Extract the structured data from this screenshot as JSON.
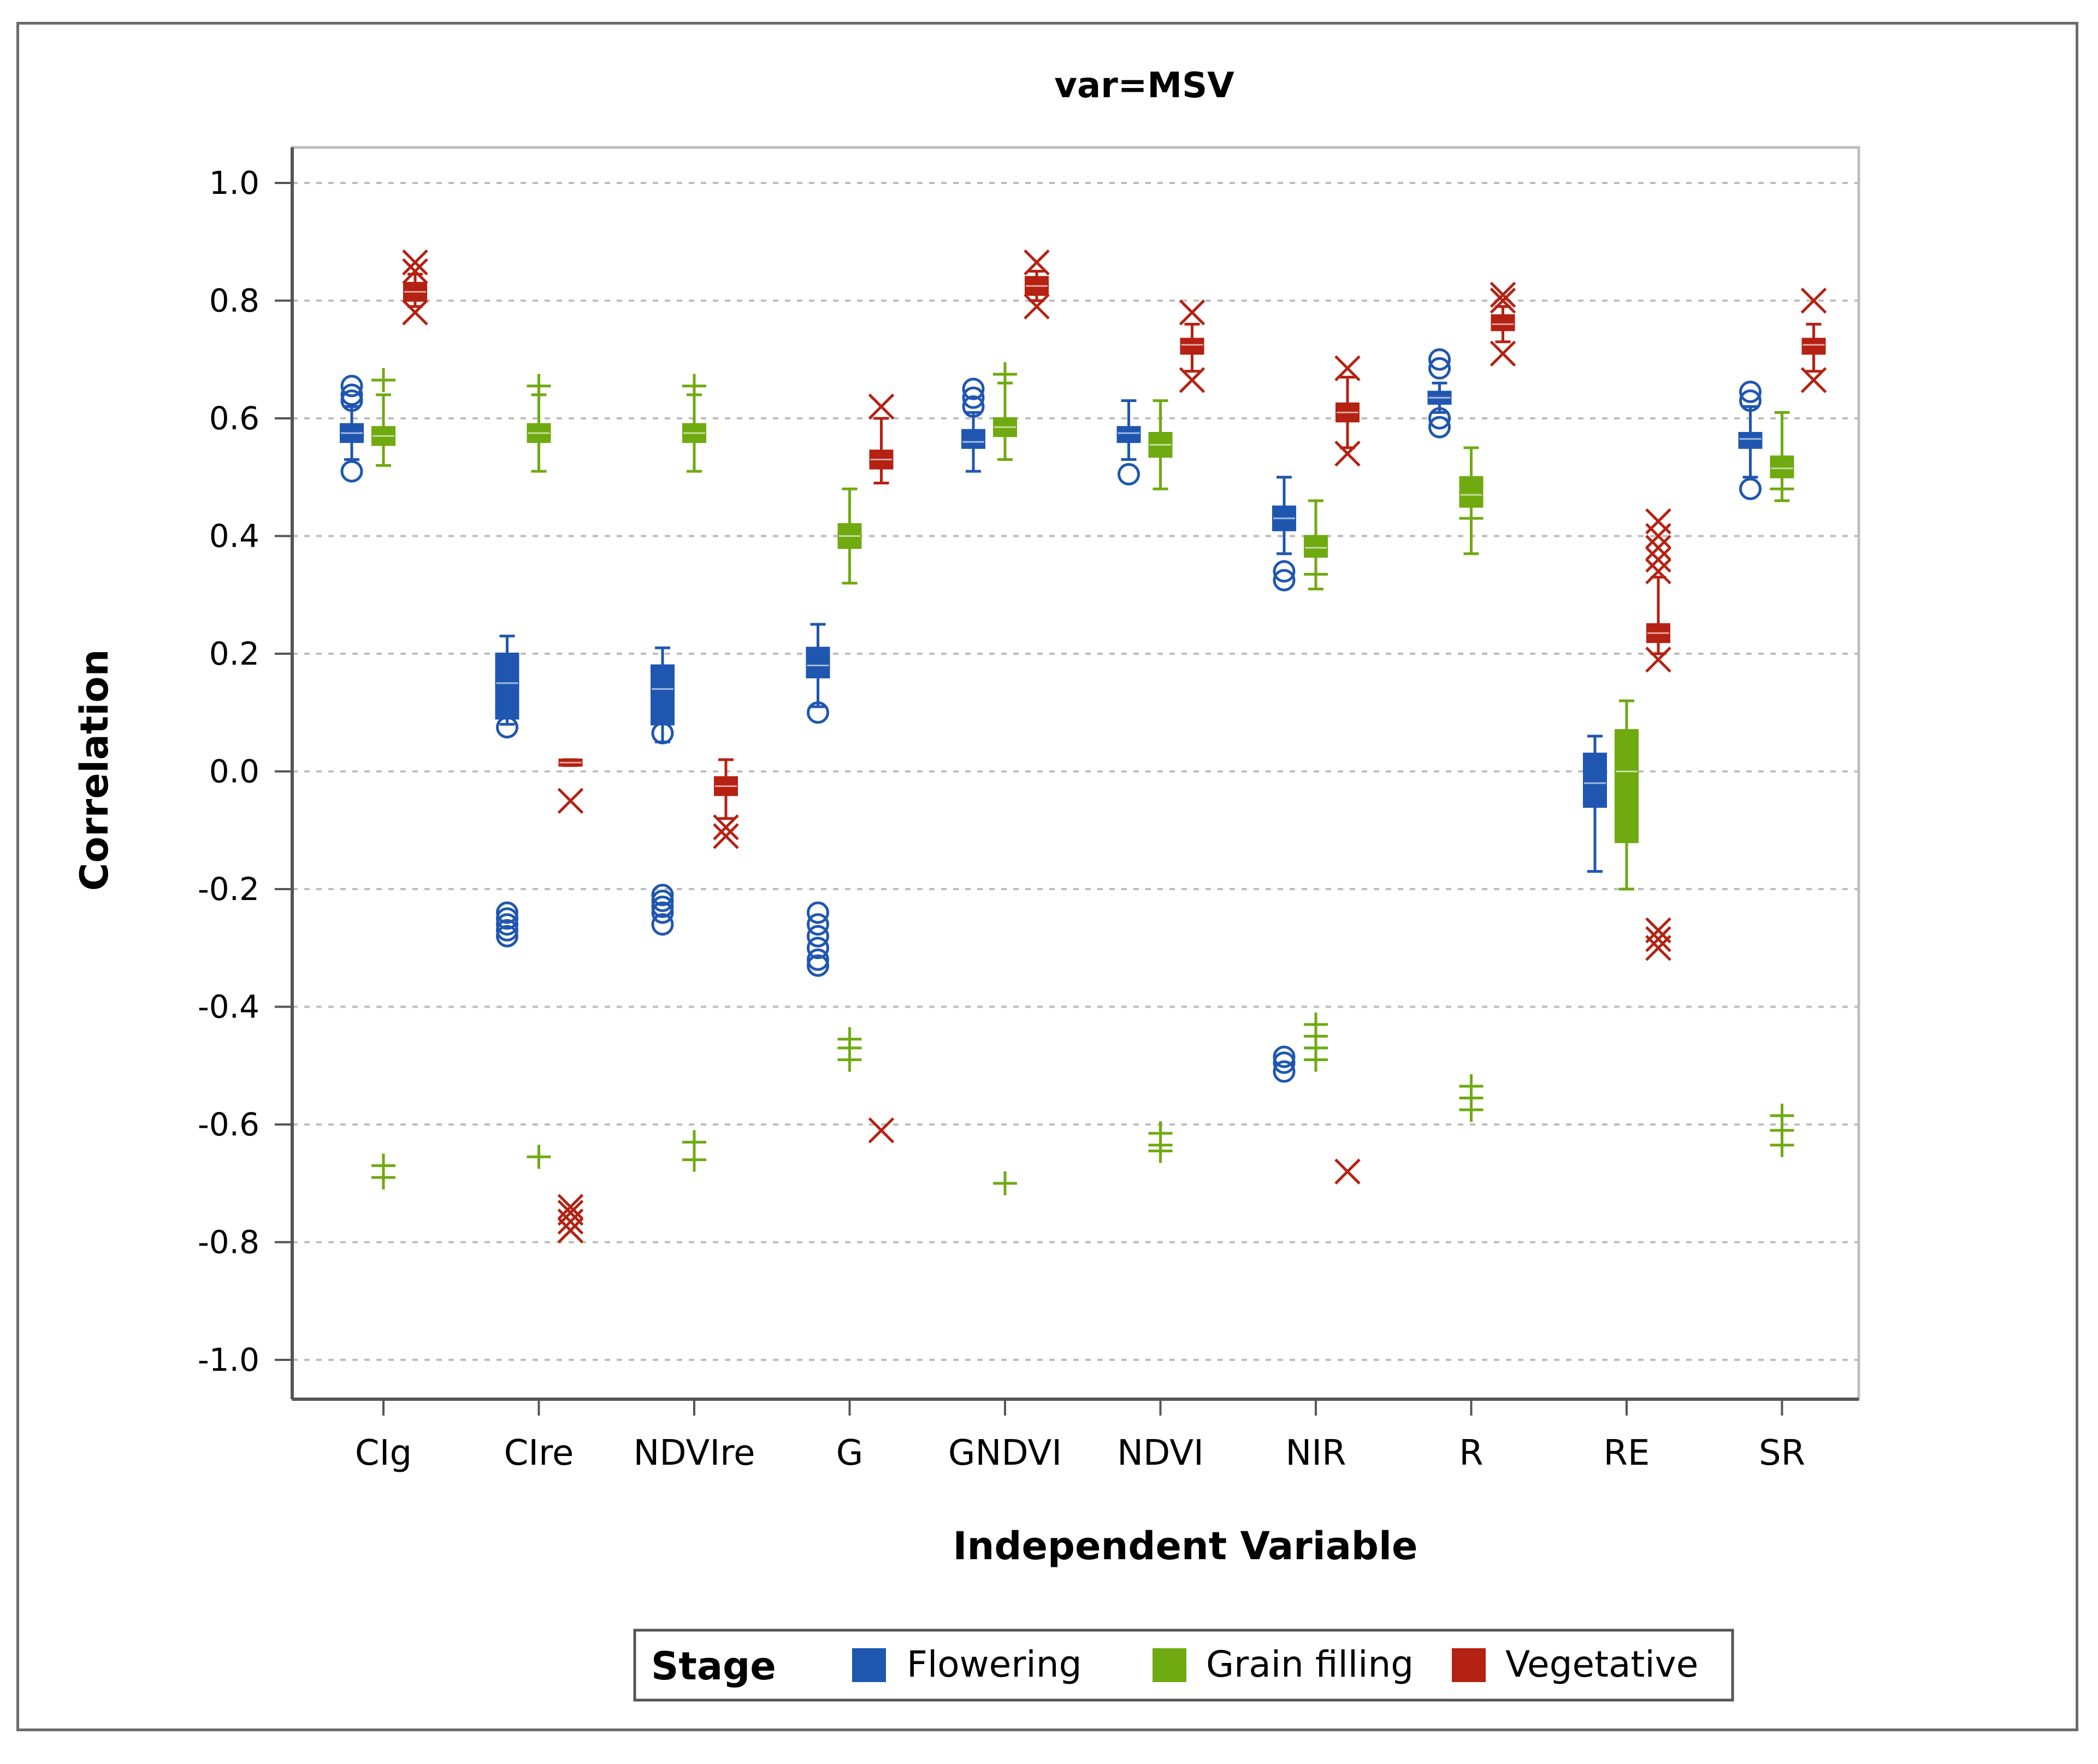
{
  "chart_data": {
    "type": "boxplot",
    "title": "var=MSV",
    "xlabel": "Independent Variable",
    "ylabel": "Correlation",
    "ylim": [
      -1.0,
      1.0
    ],
    "yticks": [
      "1.0",
      "0.8",
      "0.6",
      "0.4",
      "0.2",
      "0.0",
      "-0.2",
      "-0.4",
      "-0.6",
      "-0.8",
      "-1.0"
    ],
    "grid": true,
    "categories": [
      "CIg",
      "CIre",
      "NDVIre",
      "G",
      "GNDVI",
      "NDVI",
      "NIR",
      "R",
      "RE",
      "SR"
    ],
    "legend": {
      "title": "Stage",
      "position": "bottom",
      "entries": [
        "Flowering",
        "Grain filling",
        "Vegetative"
      ]
    },
    "colors": {
      "Flowering": "#1f56b0",
      "Grain filling": "#6faa10",
      "Vegetative": "#b52112"
    },
    "series": [
      {
        "name": "Flowering",
        "marker": "circle",
        "boxes": [
          {
            "whislo": 0.53,
            "q1": 0.56,
            "med": 0.575,
            "q3": 0.59,
            "whishi": 0.62,
            "outliers": [
              0.51,
              0.63,
              0.64,
              0.655
            ]
          },
          {
            "whislo": 0.08,
            "q1": 0.09,
            "med": 0.15,
            "q3": 0.2,
            "whishi": 0.23,
            "outliers": [
              0.075,
              -0.24,
              -0.25,
              -0.26,
              -0.27,
              -0.28
            ]
          },
          {
            "whislo": 0.05,
            "q1": 0.08,
            "med": 0.14,
            "q3": 0.18,
            "whishi": 0.21,
            "outliers": [
              0.065,
              -0.21,
              -0.22,
              -0.23,
              -0.24,
              -0.26
            ]
          },
          {
            "whislo": 0.11,
            "q1": 0.16,
            "med": 0.18,
            "q3": 0.21,
            "whishi": 0.25,
            "outliers": [
              0.1,
              -0.24,
              -0.26,
              -0.28,
              -0.3,
              -0.32,
              -0.33
            ]
          },
          {
            "whislo": 0.51,
            "q1": 0.55,
            "med": 0.56,
            "q3": 0.58,
            "whishi": 0.61,
            "outliers": [
              0.62,
              0.635,
              0.65
            ]
          },
          {
            "whislo": 0.53,
            "q1": 0.56,
            "med": 0.575,
            "q3": 0.585,
            "whishi": 0.63,
            "outliers": [
              0.505
            ]
          },
          {
            "whislo": 0.37,
            "q1": 0.41,
            "med": 0.43,
            "q3": 0.45,
            "whishi": 0.5,
            "outliers": [
              0.325,
              0.34,
              -0.485,
              -0.495,
              -0.51
            ]
          },
          {
            "whislo": 0.61,
            "q1": 0.625,
            "med": 0.635,
            "q3": 0.645,
            "whishi": 0.66,
            "outliers": [
              0.585,
              0.6,
              0.685,
              0.7
            ]
          },
          {
            "whislo": -0.17,
            "q1": -0.06,
            "med": -0.02,
            "q3": 0.03,
            "whishi": 0.06,
            "outliers": []
          },
          {
            "whislo": 0.5,
            "q1": 0.55,
            "med": 0.565,
            "q3": 0.575,
            "whishi": 0.62,
            "outliers": [
              0.48,
              0.63,
              0.645
            ]
          }
        ]
      },
      {
        "name": "Grain filling",
        "marker": "plus",
        "boxes": [
          {
            "whislo": 0.52,
            "q1": 0.555,
            "med": 0.57,
            "q3": 0.585,
            "whishi": 0.64,
            "outliers": [
              0.665,
              -0.67,
              -0.69
            ]
          },
          {
            "whislo": 0.51,
            "q1": 0.56,
            "med": 0.575,
            "q3": 0.59,
            "whishi": 0.64,
            "outliers": [
              0.655,
              -0.655
            ]
          },
          {
            "whislo": 0.51,
            "q1": 0.56,
            "med": 0.575,
            "q3": 0.59,
            "whishi": 0.64,
            "outliers": [
              0.655,
              -0.63,
              -0.66
            ]
          },
          {
            "whislo": 0.32,
            "q1": 0.38,
            "med": 0.4,
            "q3": 0.42,
            "whishi": 0.48,
            "outliers": [
              -0.455,
              -0.47,
              -0.49
            ]
          },
          {
            "whislo": 0.53,
            "q1": 0.57,
            "med": 0.585,
            "q3": 0.6,
            "whishi": 0.66,
            "outliers": [
              0.675,
              -0.7
            ]
          },
          {
            "whislo": 0.48,
            "q1": 0.535,
            "med": 0.555,
            "q3": 0.575,
            "whishi": 0.63,
            "outliers": [
              -0.615,
              -0.635,
              -0.645
            ]
          },
          {
            "whislo": 0.31,
            "q1": 0.365,
            "med": 0.38,
            "q3": 0.4,
            "whishi": 0.46,
            "outliers": [
              0.335,
              -0.43,
              -0.45,
              -0.47,
              -0.49
            ]
          },
          {
            "whislo": 0.37,
            "q1": 0.45,
            "med": 0.47,
            "q3": 0.5,
            "whishi": 0.55,
            "outliers": [
              0.43,
              -0.535,
              -0.555,
              -0.575
            ]
          },
          {
            "whislo": -0.2,
            "q1": -0.12,
            "med": 0.0,
            "q3": 0.07,
            "whishi": 0.12,
            "outliers": []
          },
          {
            "whislo": 0.46,
            "q1": 0.5,
            "med": 0.515,
            "q3": 0.535,
            "whishi": 0.61,
            "outliers": [
              0.48,
              -0.585,
              -0.61,
              -0.635
            ]
          }
        ]
      },
      {
        "name": "Vegetative",
        "marker": "x",
        "boxes": [
          {
            "whislo": 0.79,
            "q1": 0.8,
            "med": 0.815,
            "q3": 0.83,
            "whishi": 0.845,
            "outliers": [
              0.78,
              0.85,
              0.865
            ]
          },
          {
            "whislo": 0.01,
            "q1": 0.01,
            "med": 0.015,
            "q3": 0.02,
            "whishi": 0.02,
            "outliers": [
              -0.05,
              -0.74,
              -0.75,
              -0.765,
              -0.78
            ]
          },
          {
            "whislo": -0.08,
            "q1": -0.04,
            "med": -0.025,
            "q3": -0.01,
            "whishi": 0.02,
            "outliers": [
              -0.095,
              -0.11
            ]
          },
          {
            "whislo": 0.49,
            "q1": 0.515,
            "med": 0.53,
            "q3": 0.545,
            "whishi": 0.6,
            "outliers": [
              0.62,
              -0.61
            ]
          },
          {
            "whislo": 0.8,
            "q1": 0.81,
            "med": 0.825,
            "q3": 0.84,
            "whishi": 0.85,
            "outliers": [
              0.79,
              0.865
            ]
          },
          {
            "whislo": 0.68,
            "q1": 0.71,
            "med": 0.725,
            "q3": 0.735,
            "whishi": 0.76,
            "outliers": [
              0.665,
              0.78
            ]
          },
          {
            "whislo": 0.55,
            "q1": 0.595,
            "med": 0.61,
            "q3": 0.625,
            "whishi": 0.67,
            "outliers": [
              0.54,
              0.685,
              -0.68
            ]
          },
          {
            "whislo": 0.73,
            "q1": 0.75,
            "med": 0.76,
            "q3": 0.775,
            "whishi": 0.79,
            "outliers": [
              0.71,
              0.8,
              0.81
            ]
          },
          {
            "whislo": 0.2,
            "q1": 0.22,
            "med": 0.235,
            "q3": 0.25,
            "whishi": 0.33,
            "outliers": [
              0.19,
              0.34,
              0.36,
              0.38,
              0.4,
              0.425,
              -0.27,
              -0.285,
              -0.3
            ]
          },
          {
            "whislo": 0.68,
            "q1": 0.71,
            "med": 0.725,
            "q3": 0.735,
            "whishi": 0.76,
            "outliers": [
              0.665,
              0.8
            ]
          }
        ]
      }
    ]
  }
}
